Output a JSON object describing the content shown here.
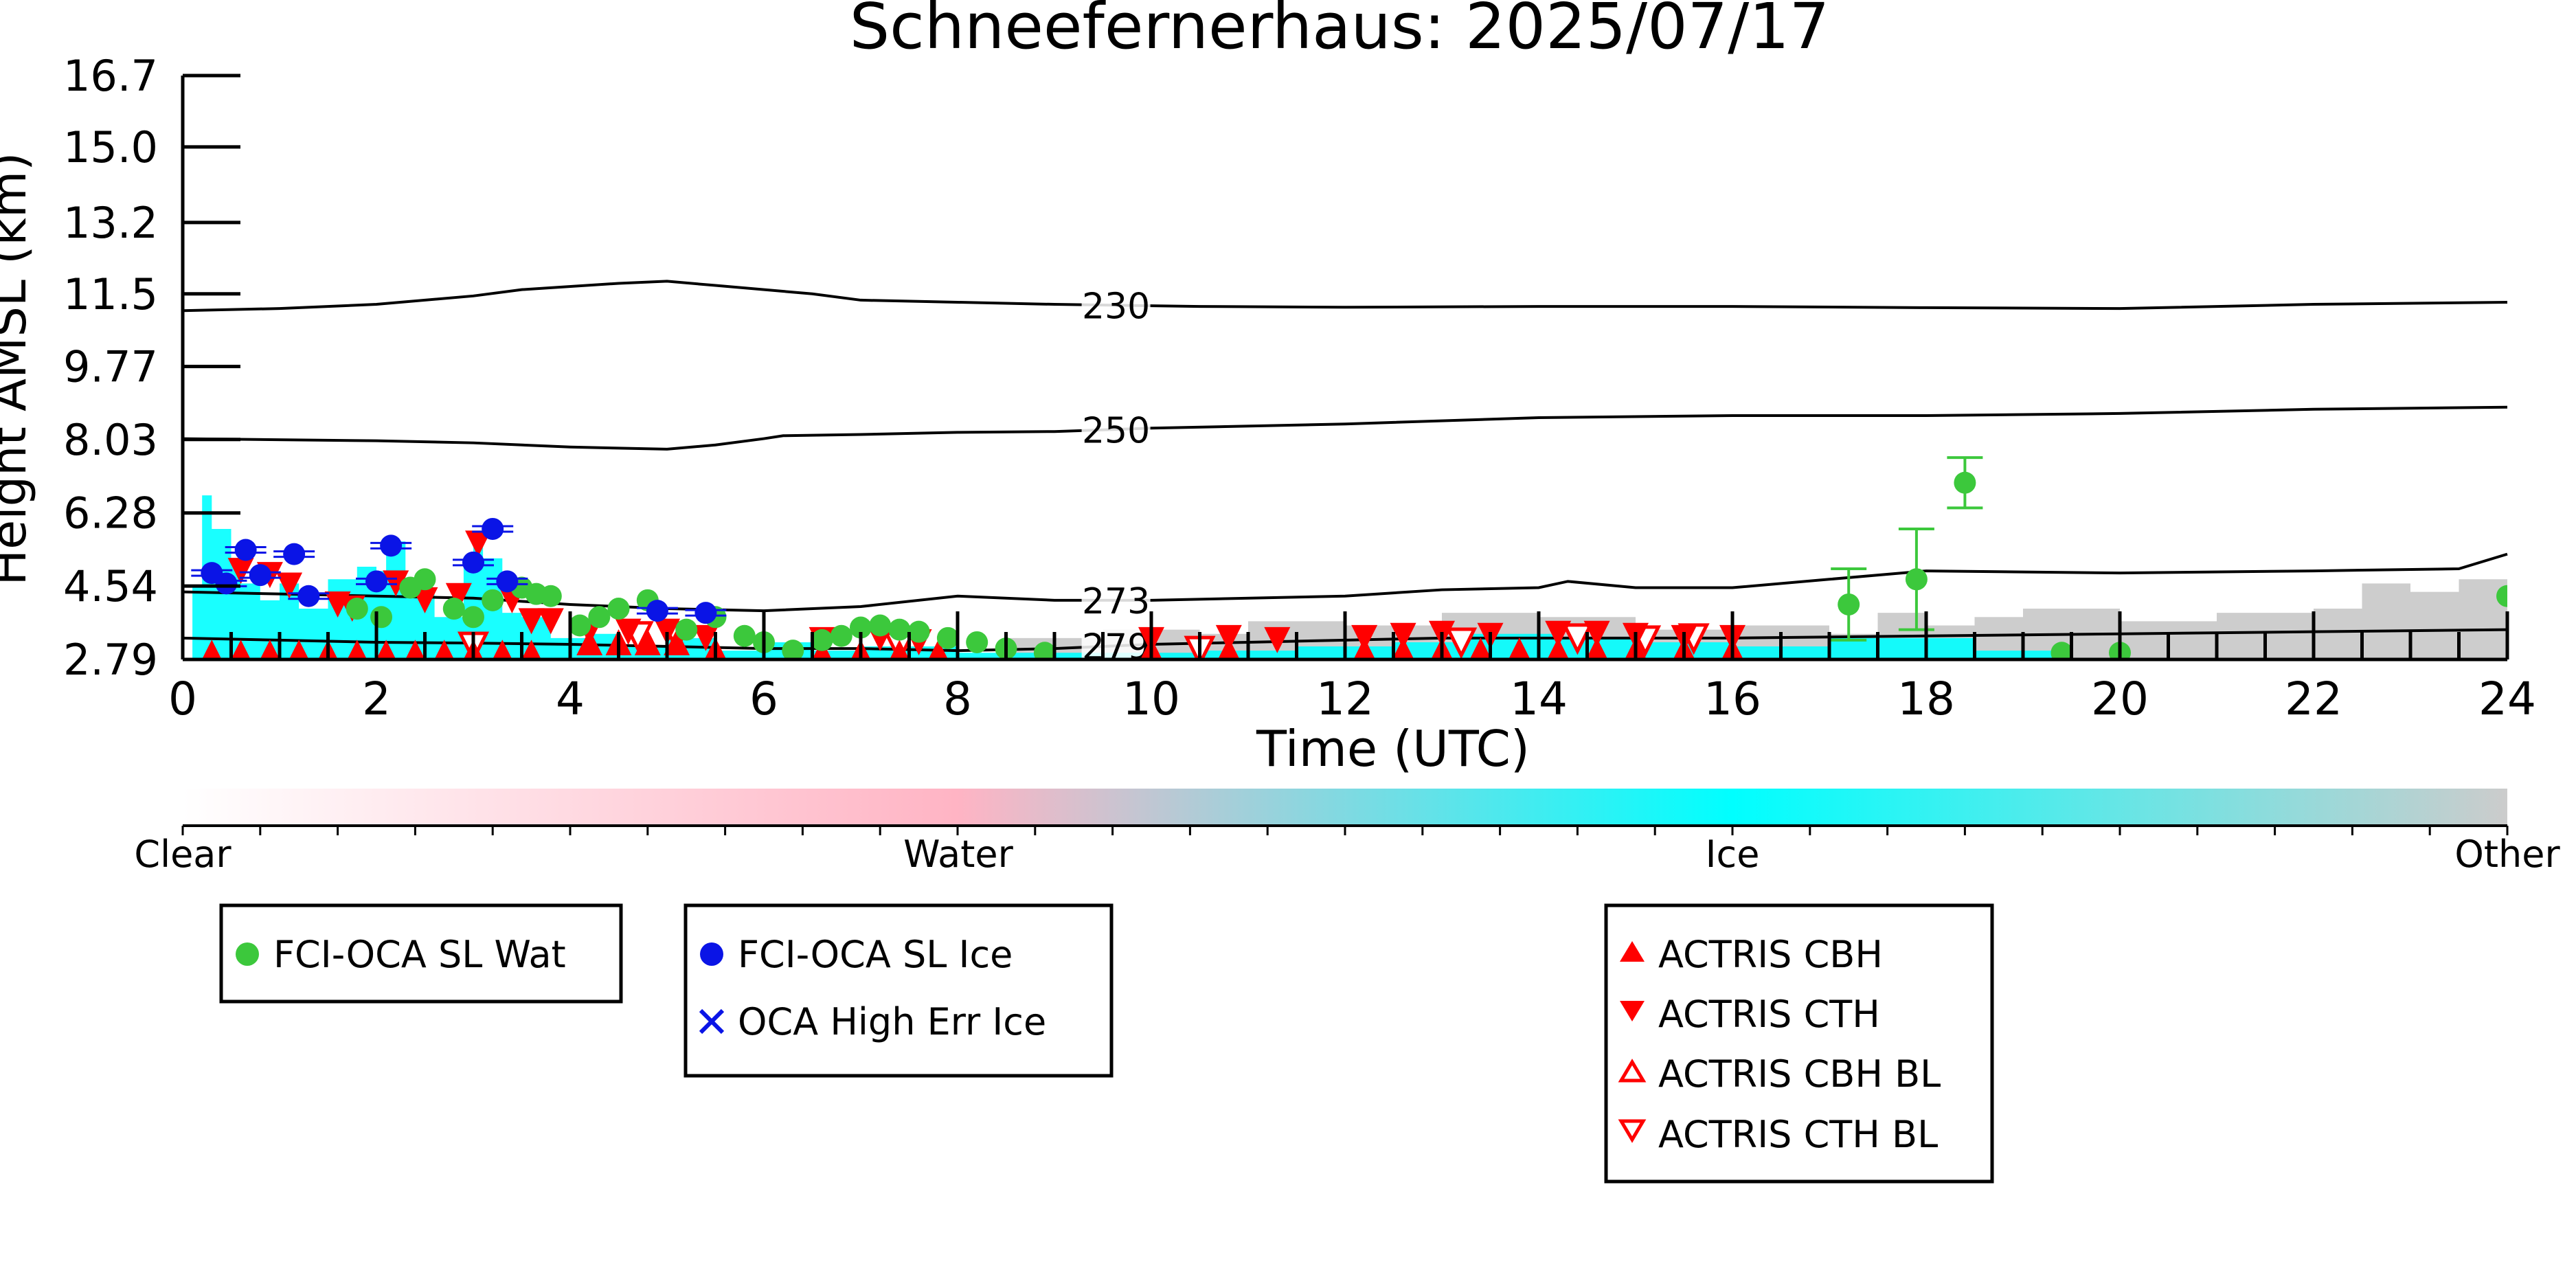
{
  "chart_data": {
    "type": "scatter",
    "title": "Schneefernerhaus: 2025/07/17",
    "xlabel": "Time (UTC)",
    "ylabel": "Height AMSL (km)",
    "xlim": [
      0,
      24
    ],
    "ylim": [
      2.79,
      16.7
    ],
    "x_ticks": [
      "0",
      "2",
      "4",
      "6",
      "8",
      "10",
      "12",
      "14",
      "16",
      "18",
      "20",
      "22",
      "24"
    ],
    "y_ticks": [
      "2.79",
      "4.54",
      "6.28",
      "8.03",
      "9.77",
      "11.5",
      "13.2",
      "15.0",
      "16.7"
    ],
    "y_tick_values": [
      2.79,
      4.54,
      6.28,
      8.03,
      9.77,
      11.5,
      13.2,
      15.0,
      16.7
    ],
    "grid": false,
    "colors": {
      "water_cyan": "#00ffff",
      "other_grey": "#c8c8c8",
      "fci_water": "#3cc83c",
      "fci_ice": "#0a14e6",
      "actris": "#ff0000",
      "contour": "#000000"
    },
    "temperature_contours": [
      {
        "label": "230",
        "label_x": 9.6,
        "points": [
          [
            0,
            11.1
          ],
          [
            1,
            11.15
          ],
          [
            2,
            11.25
          ],
          [
            3,
            11.45
          ],
          [
            3.5,
            11.6
          ],
          [
            4.5,
            11.75
          ],
          [
            5,
            11.8
          ],
          [
            5.5,
            11.7
          ],
          [
            6.5,
            11.5
          ],
          [
            7,
            11.35
          ],
          [
            8,
            11.3
          ],
          [
            9,
            11.25
          ],
          [
            10.5,
            11.2
          ],
          [
            12,
            11.18
          ],
          [
            14,
            11.2
          ],
          [
            16,
            11.2
          ],
          [
            18,
            11.17
          ],
          [
            20,
            11.15
          ],
          [
            22,
            11.25
          ],
          [
            24,
            11.3
          ]
        ]
      },
      {
        "label": "250",
        "label_x": 9.6,
        "points": [
          [
            0,
            8.05
          ],
          [
            2,
            8.0
          ],
          [
            3,
            7.95
          ],
          [
            4,
            7.85
          ],
          [
            5,
            7.8
          ],
          [
            5.5,
            7.9
          ],
          [
            6,
            8.05
          ],
          [
            6.2,
            8.12
          ],
          [
            7,
            8.15
          ],
          [
            8,
            8.2
          ],
          [
            9,
            8.22
          ],
          [
            10,
            8.3
          ],
          [
            12,
            8.4
          ],
          [
            14,
            8.55
          ],
          [
            16,
            8.6
          ],
          [
            18,
            8.6
          ],
          [
            20,
            8.65
          ],
          [
            22,
            8.75
          ],
          [
            24,
            8.8
          ]
        ]
      },
      {
        "label": "273",
        "label_x": 9.6,
        "points": [
          [
            0,
            4.4
          ],
          [
            1,
            4.35
          ],
          [
            2,
            4.3
          ],
          [
            3,
            4.25
          ],
          [
            4,
            4.1
          ],
          [
            5,
            4.0
          ],
          [
            6,
            3.95
          ],
          [
            7,
            4.05
          ],
          [
            8,
            4.3
          ],
          [
            9,
            4.2
          ],
          [
            10,
            4.2
          ],
          [
            12,
            4.3
          ],
          [
            13,
            4.45
          ],
          [
            14,
            4.5
          ],
          [
            14.3,
            4.65
          ],
          [
            15,
            4.5
          ],
          [
            16,
            4.5
          ],
          [
            17,
            4.7
          ],
          [
            18,
            4.9
          ],
          [
            20,
            4.85
          ],
          [
            22,
            4.9
          ],
          [
            23.5,
            4.95
          ],
          [
            24,
            5.3
          ]
        ]
      },
      {
        "label": "279",
        "label_x": 9.6,
        "points": [
          [
            0,
            3.3
          ],
          [
            1,
            3.25
          ],
          [
            2,
            3.2
          ],
          [
            3,
            3.18
          ],
          [
            4,
            3.15
          ],
          [
            5,
            3.1
          ],
          [
            6,
            3.05
          ],
          [
            7,
            3.05
          ],
          [
            8,
            3.0
          ],
          [
            9,
            3.05
          ],
          [
            10,
            3.15
          ],
          [
            11,
            3.2
          ],
          [
            12,
            3.25
          ],
          [
            13,
            3.3
          ],
          [
            14,
            3.3
          ],
          [
            16,
            3.3
          ],
          [
            18,
            3.35
          ],
          [
            20,
            3.4
          ],
          [
            22,
            3.45
          ],
          [
            24,
            3.5
          ]
        ]
      }
    ],
    "cloud_phase_mask": {
      "water": [
        [
          0.1,
          4.5
        ],
        [
          0.2,
          6.7
        ],
        [
          0.3,
          5.9
        ],
        [
          0.5,
          5.2
        ],
        [
          0.6,
          4.6
        ],
        [
          0.8,
          4.2
        ],
        [
          1.0,
          4.6
        ],
        [
          1.2,
          4.0
        ],
        [
          1.5,
          4.7
        ],
        [
          1.8,
          5.0
        ],
        [
          2.0,
          4.9
        ],
        [
          2.1,
          5.6
        ],
        [
          2.3,
          4.4
        ],
        [
          2.6,
          3.8
        ],
        [
          2.9,
          5.1
        ],
        [
          3.0,
          5.7
        ],
        [
          3.1,
          5.2
        ],
        [
          3.3,
          3.9
        ],
        [
          3.5,
          3.8
        ],
        [
          3.8,
          3.3
        ],
        [
          4.2,
          3.4
        ],
        [
          4.5,
          3.1
        ],
        [
          5.0,
          3.3
        ],
        [
          5.5,
          3.0
        ],
        [
          6.0,
          3.2
        ],
        [
          6.5,
          3.0
        ],
        [
          7.0,
          3.1
        ],
        [
          8.0,
          2.95
        ],
        [
          10.5,
          3.0
        ],
        [
          11.5,
          3.1
        ],
        [
          12.5,
          3.2
        ],
        [
          13.2,
          3.4
        ],
        [
          14.2,
          3.3
        ],
        [
          15.0,
          3.2
        ],
        [
          16.0,
          3.1
        ],
        [
          17.0,
          3.3
        ],
        [
          18.5,
          3.0
        ],
        [
          19.5,
          2.9
        ]
      ],
      "other": [
        [
          8.5,
          3.3
        ],
        [
          9.5,
          3.5
        ],
        [
          10.5,
          3.4
        ],
        [
          11.0,
          3.7
        ],
        [
          12.0,
          3.6
        ],
        [
          13.0,
          3.9
        ],
        [
          14.0,
          3.8
        ],
        [
          15.0,
          3.5
        ],
        [
          16.0,
          3.6
        ],
        [
          17.0,
          3.4
        ],
        [
          17.5,
          3.9
        ],
        [
          18.0,
          3.6
        ],
        [
          18.5,
          3.8
        ],
        [
          19.0,
          4.0
        ],
        [
          20.0,
          3.7
        ],
        [
          21.0,
          3.9
        ],
        [
          22.0,
          4.0
        ],
        [
          22.5,
          4.6
        ],
        [
          23.0,
          4.4
        ],
        [
          23.5,
          4.7
        ],
        [
          24.0,
          4.2
        ]
      ]
    },
    "fci_oca_sl_wat": [
      {
        "x": 1.8,
        "y": 4.0
      },
      {
        "x": 2.05,
        "y": 3.8
      },
      {
        "x": 2.35,
        "y": 4.5
      },
      {
        "x": 2.5,
        "y": 4.7
      },
      {
        "x": 2.8,
        "y": 4.0
      },
      {
        "x": 3.0,
        "y": 3.8
      },
      {
        "x": 3.2,
        "y": 4.2
      },
      {
        "x": 3.5,
        "y": 4.5
      },
      {
        "x": 3.65,
        "y": 4.35
      },
      {
        "x": 3.8,
        "y": 4.3
      },
      {
        "x": 4.1,
        "y": 3.6
      },
      {
        "x": 4.3,
        "y": 3.8
      },
      {
        "x": 4.5,
        "y": 4.0
      },
      {
        "x": 4.8,
        "y": 4.2
      },
      {
        "x": 5.2,
        "y": 3.5
      },
      {
        "x": 5.5,
        "y": 3.8
      },
      {
        "x": 5.8,
        "y": 3.35
      },
      {
        "x": 6.0,
        "y": 3.2
      },
      {
        "x": 6.3,
        "y": 3.0
      },
      {
        "x": 6.6,
        "y": 3.25
      },
      {
        "x": 6.8,
        "y": 3.35
      },
      {
        "x": 7.0,
        "y": 3.55
      },
      {
        "x": 7.2,
        "y": 3.6
      },
      {
        "x": 7.4,
        "y": 3.5
      },
      {
        "x": 7.6,
        "y": 3.45
      },
      {
        "x": 7.9,
        "y": 3.3
      },
      {
        "x": 8.2,
        "y": 3.2
      },
      {
        "x": 8.5,
        "y": 3.05
      },
      {
        "x": 8.9,
        "y": 2.95
      },
      {
        "x": 17.2,
        "y": 4.1,
        "err": 0.85
      },
      {
        "x": 17.9,
        "y": 4.7,
        "err": 1.2
      },
      {
        "x": 18.4,
        "y": 7.0,
        "err": 0.6
      },
      {
        "x": 19.4,
        "y": 2.95
      },
      {
        "x": 20.0,
        "y": 2.95
      },
      {
        "x": 24.0,
        "y": 4.3
      }
    ],
    "fci_oca_sl_ice": [
      {
        "x": 0.3,
        "y": 4.85
      },
      {
        "x": 0.45,
        "y": 4.6
      },
      {
        "x": 0.65,
        "y": 5.4
      },
      {
        "x": 0.8,
        "y": 4.8
      },
      {
        "x": 1.15,
        "y": 5.3
      },
      {
        "x": 1.3,
        "y": 4.3
      },
      {
        "x": 2.0,
        "y": 4.65
      },
      {
        "x": 2.15,
        "y": 5.5
      },
      {
        "x": 3.0,
        "y": 5.1
      },
      {
        "x": 3.2,
        "y": 5.9
      },
      {
        "x": 3.35,
        "y": 4.65
      },
      {
        "x": 4.9,
        "y": 3.95
      },
      {
        "x": 5.4,
        "y": 3.9
      }
    ],
    "oca_high_err_ice": [],
    "actris_cbh": [
      {
        "x": 0.3,
        "y": 2.95
      },
      {
        "x": 0.6,
        "y": 2.95
      },
      {
        "x": 0.9,
        "y": 2.95
      },
      {
        "x": 1.2,
        "y": 2.95
      },
      {
        "x": 1.5,
        "y": 2.95
      },
      {
        "x": 1.8,
        "y": 2.95
      },
      {
        "x": 2.1,
        "y": 2.95
      },
      {
        "x": 2.4,
        "y": 2.95
      },
      {
        "x": 2.7,
        "y": 2.95
      },
      {
        "x": 3.0,
        "y": 2.95
      },
      {
        "x": 3.3,
        "y": 2.95
      },
      {
        "x": 3.6,
        "y": 2.95
      },
      {
        "x": 4.2,
        "y": 3.2
      },
      {
        "x": 4.5,
        "y": 3.2
      },
      {
        "x": 4.8,
        "y": 3.2
      },
      {
        "x": 5.1,
        "y": 3.2
      },
      {
        "x": 5.5,
        "y": 3.0
      },
      {
        "x": 6.6,
        "y": 2.95
      },
      {
        "x": 7.0,
        "y": 2.95
      },
      {
        "x": 7.4,
        "y": 2.95
      },
      {
        "x": 7.8,
        "y": 2.95
      },
      {
        "x": 10.0,
        "y": 3.0
      },
      {
        "x": 10.8,
        "y": 3.0
      },
      {
        "x": 12.2,
        "y": 3.0
      },
      {
        "x": 12.6,
        "y": 3.0
      },
      {
        "x": 13.0,
        "y": 3.0
      },
      {
        "x": 13.4,
        "y": 3.0
      },
      {
        "x": 13.8,
        "y": 3.0
      },
      {
        "x": 14.2,
        "y": 3.0
      },
      {
        "x": 14.6,
        "y": 3.0
      },
      {
        "x": 15.0,
        "y": 3.0
      },
      {
        "x": 15.5,
        "y": 3.0
      },
      {
        "x": 16.0,
        "y": 3.0
      }
    ],
    "actris_cth": [
      {
        "x": 0.6,
        "y": 4.9
      },
      {
        "x": 0.9,
        "y": 4.8
      },
      {
        "x": 1.1,
        "y": 4.55
      },
      {
        "x": 1.6,
        "y": 4.1
      },
      {
        "x": 1.75,
        "y": 4.0
      },
      {
        "x": 2.2,
        "y": 4.6
      },
      {
        "x": 2.5,
        "y": 4.2
      },
      {
        "x": 2.85,
        "y": 4.3
      },
      {
        "x": 3.05,
        "y": 5.55
      },
      {
        "x": 3.4,
        "y": 4.2
      },
      {
        "x": 3.6,
        "y": 3.7
      },
      {
        "x": 3.8,
        "y": 3.7
      },
      {
        "x": 4.2,
        "y": 3.45
      },
      {
        "x": 4.6,
        "y": 3.45
      },
      {
        "x": 5.0,
        "y": 3.45
      },
      {
        "x": 5.4,
        "y": 3.3
      },
      {
        "x": 6.6,
        "y": 3.25
      },
      {
        "x": 7.2,
        "y": 3.3
      },
      {
        "x": 7.6,
        "y": 3.2
      },
      {
        "x": 10.0,
        "y": 3.25
      },
      {
        "x": 10.8,
        "y": 3.3
      },
      {
        "x": 11.3,
        "y": 3.25
      },
      {
        "x": 12.2,
        "y": 3.3
      },
      {
        "x": 12.6,
        "y": 3.35
      },
      {
        "x": 13.0,
        "y": 3.4
      },
      {
        "x": 13.5,
        "y": 3.35
      },
      {
        "x": 14.2,
        "y": 3.4
      },
      {
        "x": 14.6,
        "y": 3.4
      },
      {
        "x": 15.0,
        "y": 3.35
      },
      {
        "x": 15.5,
        "y": 3.3
      },
      {
        "x": 16.0,
        "y": 3.3
      }
    ],
    "actris_cbh_bl": [],
    "actris_cth_bl": [
      {
        "x": 3.0,
        "y": 3.1
      },
      {
        "x": 4.7,
        "y": 3.35
      },
      {
        "x": 5.1,
        "y": 3.35
      },
      {
        "x": 7.4,
        "y": 3.1
      },
      {
        "x": 10.5,
        "y": 3.0
      },
      {
        "x": 13.2,
        "y": 3.2
      },
      {
        "x": 14.4,
        "y": 3.3
      },
      {
        "x": 15.1,
        "y": 3.25
      },
      {
        "x": 15.6,
        "y": 3.3
      }
    ],
    "colorbar": {
      "labels": [
        "Clear",
        "Water",
        "Ice",
        "Other"
      ],
      "stops": [
        "#ffffff",
        "#ffb4c4",
        "#00ffff",
        "#cccccc"
      ]
    },
    "legends": [
      {
        "entries": [
          {
            "label": "FCI-OCA SL Wat",
            "marker": "circle",
            "color": "#3cc83c"
          }
        ]
      },
      {
        "entries": [
          {
            "label": "FCI-OCA SL Ice",
            "marker": "circle",
            "color": "#0a14e6"
          },
          {
            "label": "OCA High Err Ice",
            "marker": "x",
            "color": "#0a14e6"
          }
        ]
      },
      {
        "entries": [
          {
            "label": "ACTRIS CBH",
            "marker": "tri-up",
            "color": "#ff0000"
          },
          {
            "label": "ACTRIS CTH",
            "marker": "tri-down",
            "color": "#ff0000"
          },
          {
            "label": "ACTRIS CBH BL",
            "marker": "tri-up-open",
            "color": "#ff0000"
          },
          {
            "label": "ACTRIS CTH BL",
            "marker": "tri-down-open",
            "color": "#ff0000"
          }
        ]
      }
    ]
  }
}
